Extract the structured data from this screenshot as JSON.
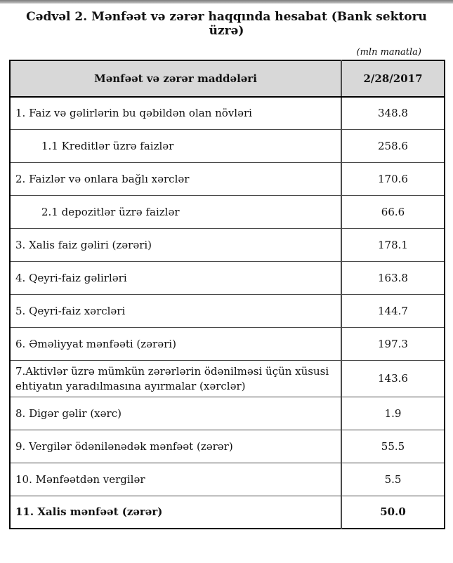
{
  "page": {
    "title": "Cədvəl 2. Mənfəət və zərər haqqında hesabat (Bank sektoru üzrə)",
    "unit_note": "(mln manatla)"
  },
  "colors": {
    "header_bg": "#d8d8d8",
    "outer_border": "#000000",
    "inner_border": "#4a4a4a",
    "text": "#111111",
    "top_bar_start": "#7d7d7d",
    "top_bar_end": "#c4c4c4"
  },
  "table": {
    "header": {
      "items_label": "Mənfəət və zərər maddələri",
      "period_label": "2/28/2017"
    },
    "rows": [
      {
        "label": "1. Faiz və gəlirlərin bu qəbildən olan növləri",
        "value": "348.8",
        "indent": false,
        "bold": false
      },
      {
        "label": "1.1 Kreditlər üzrə faizlər",
        "value": "258.6",
        "indent": true,
        "bold": false
      },
      {
        "label": "2. Faizlər və onlara bağlı xərclər",
        "value": "170.6",
        "indent": false,
        "bold": false
      },
      {
        "label": "2.1 depozitlər üzrə faizlər",
        "value": "66.6",
        "indent": true,
        "bold": false
      },
      {
        "label": "3. Xalis faiz gəliri (zərəri)",
        "value": "178.1",
        "indent": false,
        "bold": false
      },
      {
        "label": "4. Qeyri-faiz gəlirləri",
        "value": "163.8",
        "indent": false,
        "bold": false
      },
      {
        "label": "5. Qeyri-faiz xərcləri",
        "value": "144.7",
        "indent": false,
        "bold": false
      },
      {
        "label": "6. Əməliyyat mənfəəti (zərəri)",
        "value": "197.3",
        "indent": false,
        "bold": false
      },
      {
        "label": "7.Aktivlər üzrə mümkün zərərlərin ödənilməsi üçün xüsusi ehtiyatın yaradılmasına ayırmalar (xərclər)",
        "value": "143.6",
        "indent": false,
        "bold": false
      },
      {
        "label": "8. Digər gəlir (xərc)",
        "value": "1.9",
        "indent": false,
        "bold": false
      },
      {
        "label": "9. Vergilər ödənilənədək mənfəət (zərər)",
        "value": "55.5",
        "indent": false,
        "bold": false
      },
      {
        "label": "10. Mənfəətdən vergilər",
        "value": "5.5",
        "indent": false,
        "bold": false
      },
      {
        "label": "11. Xalis mənfəət (zərər)",
        "value": "50.0",
        "indent": false,
        "bold": true
      }
    ]
  }
}
